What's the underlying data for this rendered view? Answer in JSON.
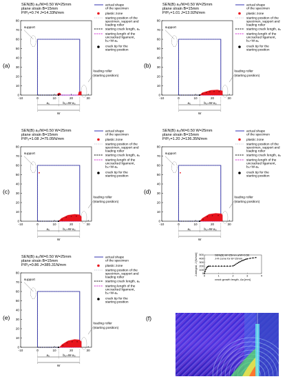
{
  "common": {
    "header_line1": "SEN(B)  a₀/W=0.50  W=25mm",
    "header_line2": "plane strain   B=15mm",
    "support_label": "support",
    "roller_label_1": "loading roller",
    "roller_label_2": "(starting position)",
    "legend": [
      "actual shape",
      "of the specimen",
      "plastic zone",
      "starting position of the",
      "specimen, support and",
      "loading roller",
      "starting crack length, a₀",
      "starting length of the",
      "uncracked ligament,",
      "b₀=W-a₀",
      "crack tip for the",
      "starting position"
    ],
    "dim_a0": "a₀",
    "dim_b0": "b₀=W-a₀",
    "dim_W": "W",
    "x_ticks": [
      "-10",
      "0",
      "10",
      "20",
      "30"
    ],
    "y_ticks": [
      "0",
      "10",
      "20",
      "30",
      "40",
      "50",
      "60",
      "70",
      "80"
    ],
    "colors": {
      "outline": "#1a1aa6",
      "plastic": "#e8141e",
      "crack": "#000000",
      "ligament": "#cc22cc"
    }
  },
  "panels": [
    {
      "label": "(a)",
      "header_line3": "P/P₀=0.74   J=14.33N/mm"
    },
    {
      "label": "(b)",
      "header_line3": "P/P₀=1.01   J=13.92N/mm"
    },
    {
      "label": "(c)",
      "header_line3": "P/P₀=1.08   J=75.05N/mm"
    },
    {
      "label": "(d)",
      "header_line3": "P/P₀=1.20   J=136.35N/mm"
    },
    {
      "label": "(e)",
      "header_line3": "P/P₀=0.86   J=385.31N/mm"
    }
  ],
  "panel_f": {
    "label": "(f)",
    "plot_title_1": "SEN(B)  W=25mm  a/W=0.50",
    "plot_title_2": "J-R curve for B=15mm",
    "ylabel": "J-integral, J [N/mm]",
    "xlabel": "crack growth length, Δa [mm]",
    "x_ticks": [
      "0",
      "1",
      "2",
      "3",
      "4"
    ],
    "y_ticks": [
      "0",
      "100",
      "200",
      "300",
      "400",
      "500"
    ]
  },
  "chart_data": {
    "type": "scatter",
    "title": "SEN(B)  W=25mm  a/W=0.50",
    "subtitle": "J-R curve for B=15mm",
    "xlabel": "crack growth length, Δa [mm]",
    "ylabel": "J-integral, J [N/mm]",
    "xlim": [
      0,
      4
    ],
    "ylim": [
      0,
      500
    ],
    "x": [
      0.0,
      0.05,
      0.1,
      0.15,
      0.2,
      0.25,
      0.3,
      0.4,
      0.6,
      0.8,
      1.0,
      1.2,
      1.4,
      1.6,
      1.8,
      2.0,
      2.1,
      2.2,
      2.3,
      2.4,
      2.5,
      2.6,
      2.7,
      2.8,
      2.9,
      3.0,
      3.2,
      3.4,
      3.6
    ],
    "y": [
      0,
      60,
      110,
      150,
      175,
      190,
      198,
      200,
      200,
      200,
      200,
      200,
      200,
      200,
      200,
      205,
      225,
      250,
      275,
      300,
      320,
      340,
      355,
      370,
      385,
      395,
      410,
      420,
      430
    ]
  }
}
